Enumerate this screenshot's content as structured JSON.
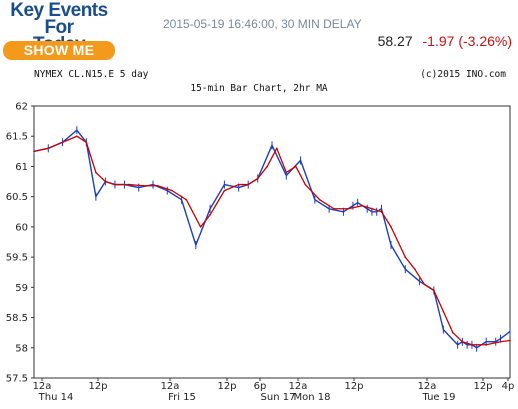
{
  "promo": {
    "title_line1": "Key Events For",
    "title_line2": "Today",
    "button_label": "SHOW ME"
  },
  "timestamp": "2015-05-19 16:46:00, 30 MIN DELAY",
  "quote": {
    "last": "58.27",
    "change": "-1.97 (-3.26%)",
    "last_color": "#222222",
    "change_color": "#cc1111"
  },
  "chart_header": {
    "symbol_text": "NYMEX CL.N15.E 5 day",
    "copyright": "(c)2015 INO.com",
    "subtitle": "15-min Bar Chart, 2hr MA"
  },
  "chart_data": {
    "type": "line",
    "title": "15-min Bar Chart, 2hr MA",
    "ylim": [
      57.5,
      62
    ],
    "yticks": [
      "62",
      "61.5",
      "61",
      "60.5",
      "60",
      "59.5",
      "59",
      "58.5",
      "58",
      "57.5"
    ],
    "ytick_values": [
      62,
      61.5,
      61,
      60.5,
      60,
      59.5,
      59,
      58.5,
      58,
      57.5
    ],
    "xtick_time_labels": [
      "12a",
      "12p",
      "12a",
      "12p",
      "6p",
      "12a",
      "12p",
      "12a",
      "12p",
      "4p"
    ],
    "xtick_day_labels": [
      "Thu 14",
      "Fri 15",
      "Sun 17",
      "Mon 18",
      "Tue 19"
    ],
    "x_range": [
      0,
      100
    ],
    "grid": true,
    "series_colors": {
      "price_bars": "#1a3fbf",
      "moving_average": "#cc0000"
    },
    "series": [
      {
        "name": "",
        "x": [
          0,
          3,
          6,
          9,
          11,
          13,
          15,
          17,
          19,
          22,
          25,
          28,
          31,
          34,
          37,
          40,
          43,
          45,
          47,
          50,
          53,
          56,
          59,
          62,
          65,
          67,
          68,
          70,
          71,
          72,
          73,
          75,
          78,
          81,
          84,
          86,
          89,
          90,
          91,
          92,
          93,
          95,
          97,
          98,
          100
        ],
        "y": [
          61.25,
          61.3,
          61.4,
          61.6,
          61.4,
          60.5,
          60.75,
          60.7,
          60.7,
          60.65,
          60.7,
          60.6,
          60.45,
          59.7,
          60.3,
          60.7,
          60.65,
          60.7,
          60.8,
          61.35,
          60.85,
          61.1,
          60.45,
          60.3,
          60.25,
          60.35,
          60.4,
          60.3,
          60.25,
          60.25,
          60.3,
          59.7,
          59.3,
          59.1,
          58.95,
          58.3,
          58.05,
          58.1,
          58.05,
          58.05,
          58.0,
          58.1,
          58.1,
          58.15,
          58.27
        ]
      },
      {
        "name": "",
        "x": [
          0,
          3,
          6,
          9,
          11,
          13,
          15,
          17,
          20,
          23,
          26,
          29,
          32,
          35,
          37,
          40,
          43,
          45,
          47,
          49,
          51,
          53,
          55,
          57,
          60,
          63,
          66,
          69,
          71,
          73,
          75,
          78,
          80,
          82,
          84,
          86,
          88,
          90,
          92,
          95,
          98,
          100
        ],
        "y": [
          61.25,
          61.3,
          61.4,
          61.5,
          61.4,
          60.9,
          60.75,
          60.7,
          60.7,
          60.68,
          60.68,
          60.6,
          60.45,
          60.0,
          60.2,
          60.6,
          60.7,
          60.7,
          60.8,
          61.0,
          61.3,
          60.9,
          61.0,
          60.7,
          60.45,
          60.3,
          60.3,
          60.35,
          60.3,
          60.25,
          60.0,
          59.5,
          59.3,
          59.05,
          58.95,
          58.6,
          58.25,
          58.1,
          58.05,
          58.05,
          58.1,
          58.12
        ]
      }
    ]
  }
}
